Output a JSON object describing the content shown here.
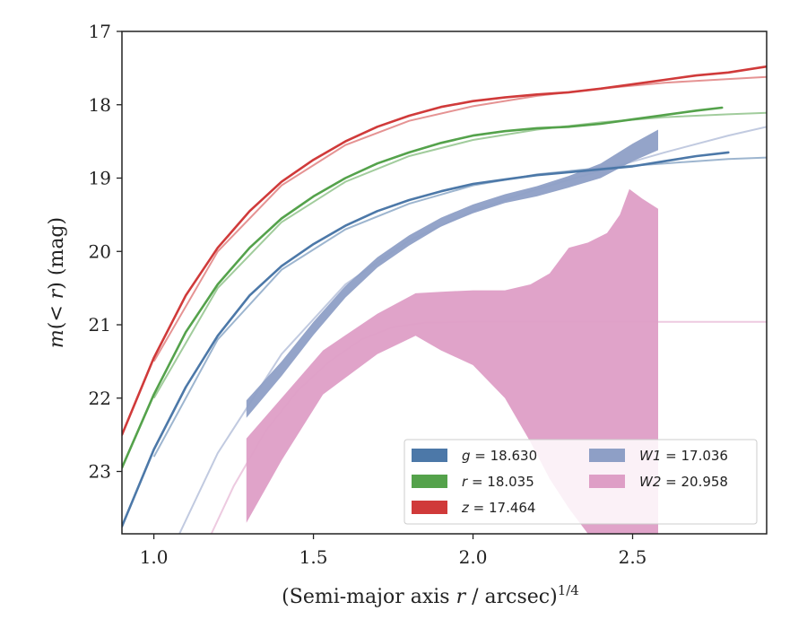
{
  "chart_data": {
    "type": "line",
    "xlabel": "(Semi-major axis r / arcsec)",
    "xlabel_italic_letter": "r",
    "xlabel_superscript": "1/4",
    "ylabel": "m(< r) (mag)",
    "xlim": [
      0.9,
      2.92
    ],
    "ylim": [
      23.85,
      17.0
    ],
    "y_inverted": true,
    "x_ticks": [
      1.0,
      1.5,
      2.0,
      2.5
    ],
    "x_tick_labels": [
      "1.0",
      "1.5",
      "2.0",
      "2.5"
    ],
    "y_ticks": [
      17,
      18,
      19,
      20,
      21,
      22,
      23
    ],
    "y_tick_labels": [
      "17",
      "18",
      "19",
      "20",
      "21",
      "22",
      "23"
    ],
    "grid": false,
    "legend_placement": "lower-right",
    "legend_columns": 2,
    "series": [
      {
        "name": "g = 18.630",
        "legend_symbol": "g",
        "legend_value": "18.630",
        "color": "#4c78a8",
        "x": [
          0.9,
          1.0,
          1.1,
          1.2,
          1.3,
          1.4,
          1.5,
          1.6,
          1.7,
          1.8,
          1.9,
          2.0,
          2.1,
          2.2,
          2.3,
          2.4,
          2.5,
          2.6,
          2.7,
          2.8
        ],
        "y": [
          23.75,
          22.7,
          21.85,
          21.15,
          20.6,
          20.2,
          19.9,
          19.65,
          19.45,
          19.3,
          19.18,
          19.08,
          19.02,
          18.96,
          18.92,
          18.88,
          18.84,
          18.77,
          18.7,
          18.65
        ],
        "model_x": [
          1.0,
          1.2,
          1.4,
          1.6,
          1.8,
          2.0,
          2.2,
          2.4,
          2.6,
          2.8,
          2.92
        ],
        "model_y": [
          22.8,
          21.2,
          20.25,
          19.7,
          19.35,
          19.1,
          18.95,
          18.86,
          18.8,
          18.74,
          18.72
        ]
      },
      {
        "name": "r = 18.035",
        "legend_symbol": "r",
        "legend_value": "18.035",
        "color": "#54a24b",
        "x": [
          0.9,
          1.0,
          1.1,
          1.2,
          1.3,
          1.4,
          1.5,
          1.6,
          1.7,
          1.8,
          1.9,
          2.0,
          2.1,
          2.2,
          2.3,
          2.4,
          2.5,
          2.6,
          2.7,
          2.78
        ],
        "y": [
          22.95,
          21.95,
          21.1,
          20.45,
          19.95,
          19.55,
          19.25,
          19.0,
          18.8,
          18.65,
          18.52,
          18.42,
          18.36,
          18.32,
          18.3,
          18.26,
          18.2,
          18.14,
          18.08,
          18.04
        ],
        "model_x": [
          1.0,
          1.2,
          1.4,
          1.6,
          1.8,
          2.0,
          2.2,
          2.4,
          2.6,
          2.8,
          2.92
        ],
        "model_y": [
          22.0,
          20.5,
          19.6,
          19.05,
          18.7,
          18.48,
          18.34,
          18.24,
          18.17,
          18.13,
          18.11
        ]
      },
      {
        "name": "z = 17.464",
        "legend_symbol": "z",
        "legend_value": "17.464",
        "color": "#d03a3a",
        "x": [
          0.9,
          1.0,
          1.1,
          1.2,
          1.3,
          1.4,
          1.5,
          1.6,
          1.7,
          1.8,
          1.9,
          2.0,
          2.1,
          2.2,
          2.3,
          2.4,
          2.5,
          2.6,
          2.7,
          2.8,
          2.92
        ],
        "y": [
          22.5,
          21.45,
          20.6,
          19.95,
          19.45,
          19.05,
          18.75,
          18.5,
          18.3,
          18.15,
          18.03,
          17.95,
          17.9,
          17.86,
          17.83,
          17.78,
          17.72,
          17.66,
          17.6,
          17.56,
          17.48
        ],
        "model_x": [
          1.0,
          1.2,
          1.4,
          1.6,
          1.8,
          2.0,
          2.2,
          2.4,
          2.6,
          2.8,
          2.92
        ],
        "model_y": [
          21.5,
          20.0,
          19.1,
          18.55,
          18.22,
          18.02,
          17.88,
          17.78,
          17.7,
          17.65,
          17.62
        ]
      },
      {
        "name": "W1 = 17.036",
        "legend_symbol": "W1",
        "legend_value": "17.036",
        "color": "#8e9fc6",
        "x": [
          1.29,
          1.4,
          1.5,
          1.6,
          1.7,
          1.8,
          1.9,
          2.0,
          2.1,
          2.2,
          2.3,
          2.4,
          2.5,
          2.58
        ],
        "y": [
          22.15,
          21.6,
          21.05,
          20.55,
          20.15,
          19.85,
          19.6,
          19.42,
          19.28,
          19.18,
          19.05,
          18.9,
          18.65,
          18.48
        ],
        "band": [
          0.12,
          0.1,
          0.09,
          0.08,
          0.07,
          0.07,
          0.06,
          0.06,
          0.06,
          0.07,
          0.08,
          0.1,
          0.12,
          0.14
        ],
        "model_x": [
          1.08,
          1.2,
          1.4,
          1.6,
          1.8,
          2.0,
          2.2,
          2.4,
          2.6,
          2.8,
          2.92
        ],
        "model_y": [
          23.85,
          22.75,
          21.4,
          20.45,
          19.85,
          19.45,
          19.15,
          18.9,
          18.65,
          18.42,
          18.3
        ]
      },
      {
        "name": "W2 = 20.958",
        "legend_symbol": "W2",
        "legend_value": "20.958",
        "color": "#de9ec6",
        "band_x": [
          1.29,
          1.4,
          1.53,
          1.7,
          1.82,
          1.9,
          2.0,
          2.1,
          2.18,
          2.24,
          2.3,
          2.36,
          2.42,
          2.46,
          2.49,
          2.53,
          2.58
        ],
        "band_low": [
          23.7,
          22.85,
          21.95,
          21.4,
          21.15,
          21.35,
          21.55,
          22.0,
          22.6,
          23.1,
          23.5,
          23.85,
          23.85,
          23.85,
          23.85,
          23.85,
          23.85
        ],
        "band_high": [
          22.55,
          22.0,
          21.35,
          20.85,
          20.57,
          20.55,
          20.53,
          20.53,
          20.45,
          20.3,
          19.95,
          19.88,
          19.75,
          19.5,
          19.15,
          19.28,
          19.42
        ],
        "model_x": [
          1.18,
          1.25,
          1.35,
          1.45,
          1.55,
          1.65,
          1.75,
          1.85,
          2.0,
          2.5,
          2.92
        ],
        "model_y": [
          23.85,
          23.2,
          22.45,
          21.9,
          21.5,
          21.2,
          21.03,
          20.97,
          20.96,
          20.96,
          20.96
        ]
      }
    ]
  }
}
